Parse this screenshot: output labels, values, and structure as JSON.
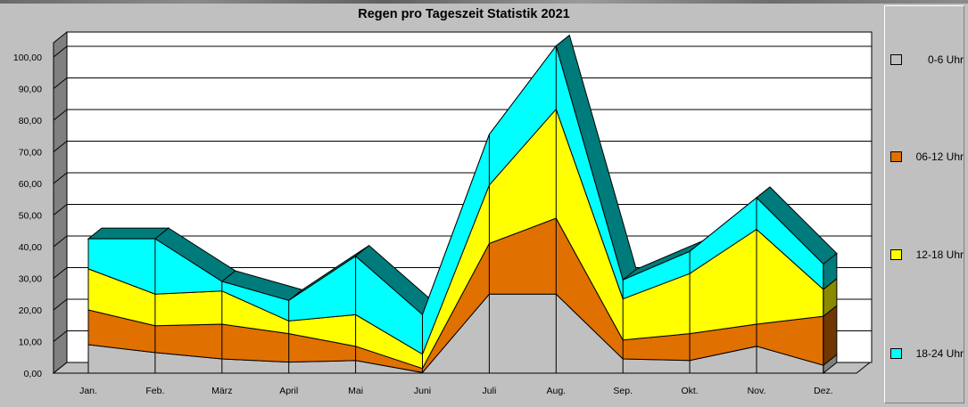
{
  "window": {
    "title": "Regen pro Tageszeit Statistik 2021"
  },
  "chart_data": {
    "type": "area",
    "stacked": true,
    "three_d": true,
    "title": "Regen pro Tageszeit Statistik 2021",
    "xlabel": "",
    "ylabel": "",
    "ylim": [
      0,
      100
    ],
    "yticks": [
      "0,00",
      "10,00",
      "20,00",
      "30,00",
      "40,00",
      "50,00",
      "60,00",
      "70,00",
      "80,00",
      "90,00",
      "100,00"
    ],
    "grid": true,
    "legend": "right",
    "categories": [
      "Jan.",
      "Feb.",
      "März",
      "April",
      "Mai",
      "Juni",
      "Juli",
      "Aug.",
      "Sep.",
      "Okt.",
      "Nov.",
      "Dez."
    ],
    "series": [
      {
        "name": "0-6 Uhr",
        "color": "#c0c0c0",
        "values": [
          9,
          6.5,
          4.5,
          3.5,
          4,
          0.2,
          25,
          25,
          4.5,
          4,
          8.5,
          2.5
        ]
      },
      {
        "name": "06-12 Uhr",
        "color": "#e07000",
        "values": [
          11,
          8.5,
          11,
          9,
          4.5,
          1.3,
          16,
          24,
          6,
          8.5,
          7,
          15.5
        ]
      },
      {
        "name": "12-18 Uhr",
        "color": "#ffff00",
        "values": [
          13,
          10,
          10.5,
          4,
          10,
          4.5,
          18.5,
          34.5,
          13,
          19,
          30,
          8.5
        ]
      },
      {
        "name": "18-24 Uhr",
        "color": "#00ffff",
        "values": [
          9.5,
          17.5,
          3,
          6.5,
          18.5,
          12.5,
          16,
          20,
          6,
          7,
          10,
          8
        ]
      }
    ],
    "top_color": "#007b7b"
  }
}
